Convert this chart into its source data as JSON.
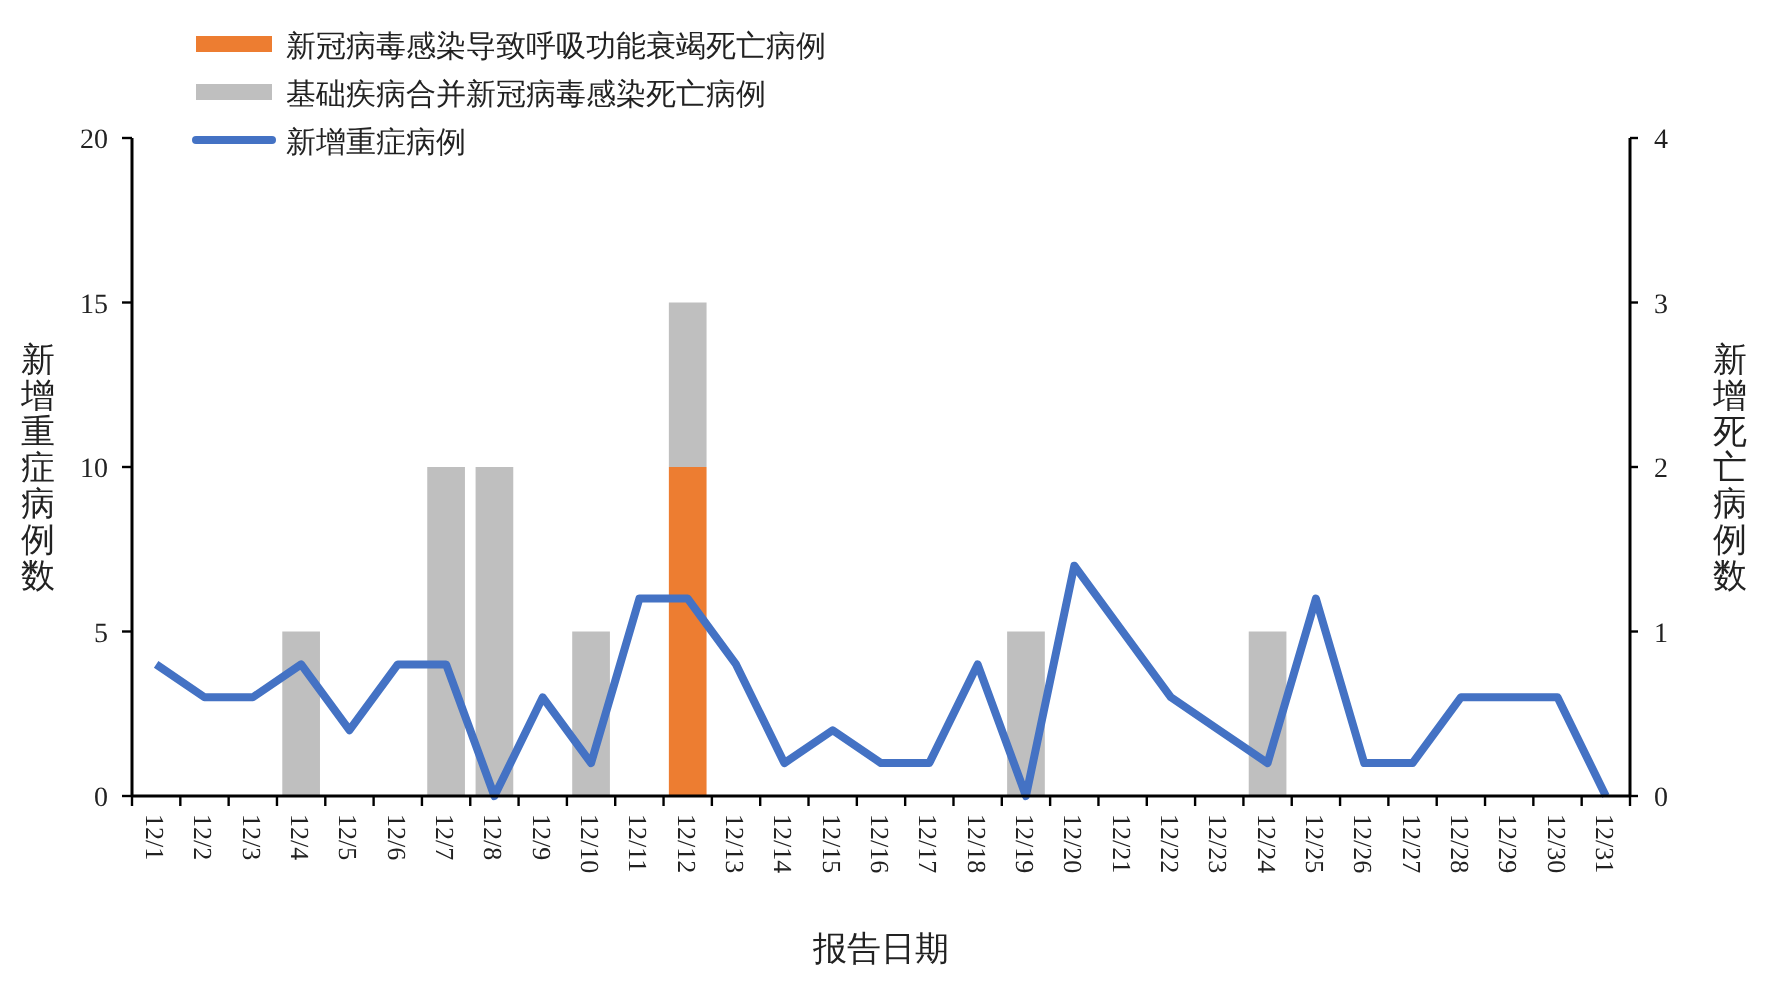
{
  "chart_data": {
    "type": "bar",
    "stacked": true,
    "xlabel": "报告日期",
    "ylabel": "新增重症病例数",
    "y2label": "新增死亡病例数",
    "categories": [
      "12/1",
      "12/2",
      "12/3",
      "12/4",
      "12/5",
      "12/6",
      "12/7",
      "12/8",
      "12/9",
      "12/10",
      "12/11",
      "12/12",
      "12/13",
      "12/14",
      "12/15",
      "12/16",
      "12/17",
      "12/18",
      "12/19",
      "12/20",
      "12/21",
      "12/22",
      "12/23",
      "12/24",
      "12/25",
      "12/26",
      "12/27",
      "12/28",
      "12/29",
      "12/30",
      "12/31"
    ],
    "series": [
      {
        "name": "新冠病毒感染导致呼吸功能衰竭死亡病例",
        "axis": "y2",
        "color": "#ed7d31",
        "values": [
          null,
          null,
          null,
          null,
          null,
          null,
          null,
          null,
          null,
          null,
          null,
          2,
          null,
          null,
          null,
          null,
          null,
          null,
          null,
          null,
          null,
          null,
          null,
          null,
          null,
          null,
          null,
          null,
          null,
          null,
          null
        ]
      },
      {
        "name": "基础疾病合并新冠病毒感染死亡病例",
        "axis": "y2",
        "color": "#bfbfbf",
        "values": [
          null,
          null,
          null,
          1,
          null,
          null,
          2,
          2,
          null,
          1,
          null,
          1,
          null,
          null,
          null,
          null,
          null,
          null,
          1,
          null,
          null,
          null,
          null,
          1,
          null,
          null,
          null,
          null,
          null,
          null,
          null
        ]
      },
      {
        "name": "新增重症病例",
        "type": "line",
        "color": "#4472c4",
        "values": [
          4,
          3,
          3,
          4,
          2,
          4,
          4,
          0,
          3,
          1,
          6,
          6,
          4,
          1,
          2,
          1,
          1,
          4,
          0,
          7,
          5,
          3,
          2,
          1,
          6,
          1,
          1,
          3,
          3,
          3,
          0
        ]
      }
    ],
    "ylim": [
      0,
      20
    ],
    "yticks": [
      0,
      5,
      10,
      15,
      20
    ],
    "y2lim": [
      0,
      4
    ],
    "y2ticks": [
      0,
      1,
      2,
      3,
      4
    ],
    "legend": "top left",
    "marker": "none"
  }
}
